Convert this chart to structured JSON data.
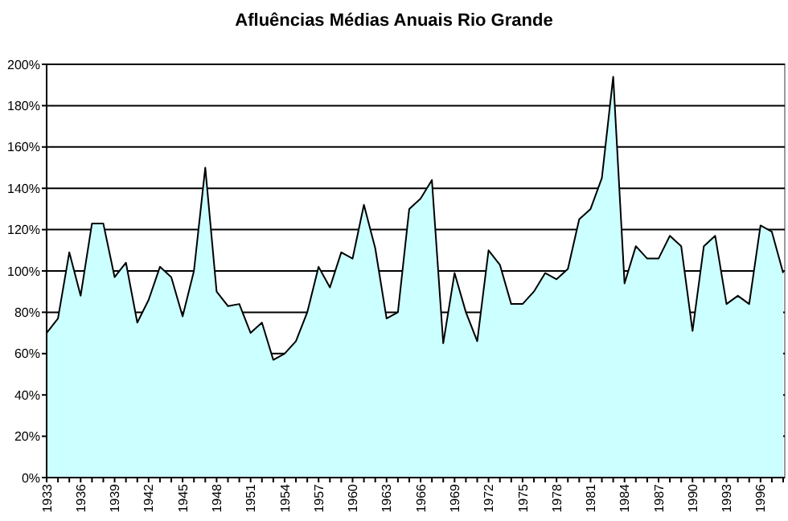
{
  "chart_data": {
    "type": "area",
    "title": "Afluências Médias Anuais Rio Grande",
    "categories": [
      "1933",
      null,
      null,
      "1936",
      null,
      null,
      "1939",
      null,
      null,
      "1942",
      null,
      null,
      "1945",
      null,
      null,
      "1948",
      null,
      null,
      "1951",
      null,
      null,
      "1954",
      null,
      null,
      "1957",
      null,
      null,
      "1960",
      null,
      null,
      "1963",
      null,
      null,
      "1966",
      null,
      null,
      "1969",
      null,
      null,
      "1972",
      null,
      null,
      "1975",
      null,
      null,
      "1978",
      null,
      null,
      "1981",
      null,
      null,
      "1984",
      null,
      null,
      "1987",
      null,
      null,
      "1990",
      null,
      null,
      "1993",
      null,
      null,
      "1996",
      null,
      null
    ],
    "series": [
      {
        "color": "#ccffff",
        "values": [
          70,
          77,
          109,
          88,
          123,
          123,
          97,
          104,
          75,
          86,
          102,
          97,
          78,
          100,
          150,
          90,
          83,
          84,
          70,
          75,
          57,
          60,
          66,
          80,
          102,
          92,
          109,
          106,
          132,
          111,
          77,
          80,
          130,
          135,
          144,
          65,
          99,
          80,
          66,
          110,
          103,
          84,
          84,
          90,
          99,
          96,
          101,
          125,
          130,
          145,
          194,
          94,
          112,
          106,
          106,
          117,
          112,
          71,
          112,
          117,
          84,
          88,
          84,
          122,
          119,
          99
        ]
      }
    ],
    "ylim": [
      0,
      200
    ],
    "yticks": [
      {
        "value": 0,
        "label": "0%"
      },
      {
        "value": 20,
        "label": "20%"
      },
      {
        "value": 40,
        "label": "40%"
      },
      {
        "value": 60,
        "label": "60%"
      },
      {
        "value": 80,
        "label": "80%"
      },
      {
        "value": 100,
        "label": "100%"
      },
      {
        "value": 120,
        "label": "120%"
      },
      {
        "value": 140,
        "label": "140%"
      },
      {
        "value": 160,
        "label": "160%"
      },
      {
        "value": 180,
        "label": "180%"
      },
      {
        "value": 200,
        "label": "200%"
      }
    ],
    "grid": "y"
  }
}
